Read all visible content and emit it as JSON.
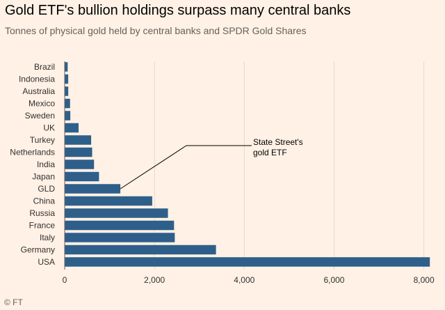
{
  "header": {
    "title": "Gold ETF's bullion holdings surpass many central banks",
    "subtitle": "Tonnes of physical gold held by central banks and SPDR Gold Shares"
  },
  "footer": {
    "source": "© FT"
  },
  "colors": {
    "background": "#fff1e5",
    "bar": "#2e5f8a",
    "grid": "#e3d9cf",
    "annotation_line": "#000000"
  },
  "chart_data": {
    "type": "bar",
    "orientation": "horizontal",
    "title": "Gold ETF's bullion holdings surpass many central banks",
    "subtitle": "Tonnes of physical gold held by central banks and SPDR Gold Shares",
    "categories": [
      "Brazil",
      "Indonesia",
      "Australia",
      "Mexico",
      "Sweden",
      "UK",
      "Turkey",
      "Netherlands",
      "India",
      "Japan",
      "GLD",
      "China",
      "Russia",
      "France",
      "Italy",
      "Germany",
      "USA"
    ],
    "values": [
      67,
      79,
      80,
      120,
      126,
      310,
      590,
      612,
      654,
      765,
      1240,
      1950,
      2300,
      2436,
      2452,
      3370,
      8133
    ],
    "xlabel": "",
    "ylabel": "",
    "xlim": [
      0,
      8300
    ],
    "xticks": [
      0,
      2000,
      4000,
      6000,
      8000
    ],
    "xtick_labels": [
      "0",
      "2,000",
      "4,000",
      "6,000",
      "8,000"
    ],
    "grid": true,
    "annotation": {
      "lines": [
        "State Street's",
        "gold ETF"
      ],
      "target": "GLD"
    }
  }
}
